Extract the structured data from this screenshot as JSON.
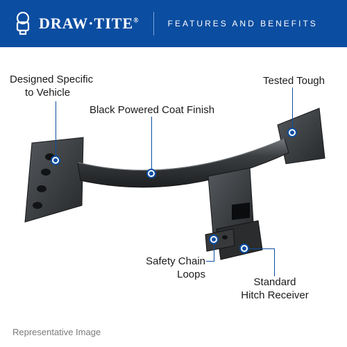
{
  "header": {
    "bg_color": "#0b4da0",
    "logo_text": "DRAW·TITE",
    "logo_color": "#ffffff",
    "logo_fontsize": 22,
    "reg_mark": "®",
    "divider_color": "#7aa7d6",
    "tagline": "FEATURES AND BENEFITS",
    "tagline_color": "#ffffff",
    "tagline_fontsize": 12
  },
  "diagram": {
    "bg_color": "#ffffff",
    "marker_border": "#0b4da0",
    "marker_fill": "#ffffff",
    "marker_dot": "#0b4da0",
    "marker_size": 14,
    "marker_border_w": 2,
    "line_color": "#0b4da0",
    "line_width": 1,
    "label_fontsize": 15,
    "label_color": "#1a1a1a",
    "callouts": {
      "vehicle": {
        "text1": "Designed Specific",
        "text2": "to Vehicle"
      },
      "finish": {
        "text1": "Black Powered Coat Finish"
      },
      "tough": {
        "text1": "Tested Tough"
      },
      "loops": {
        "text1": "Safety Chain",
        "text2": "Loops"
      },
      "receiver": {
        "text1": "Standard",
        "text2": "Hitch Receiver"
      }
    }
  },
  "footer": {
    "text": "Representative Image",
    "color": "#7a7a7a",
    "fontsize": 13
  },
  "hitch_svg": {
    "body_fill": "#2f3133",
    "body_stroke": "#1a1b1c",
    "highlight": "#6d7275",
    "shadow": "#111213"
  }
}
